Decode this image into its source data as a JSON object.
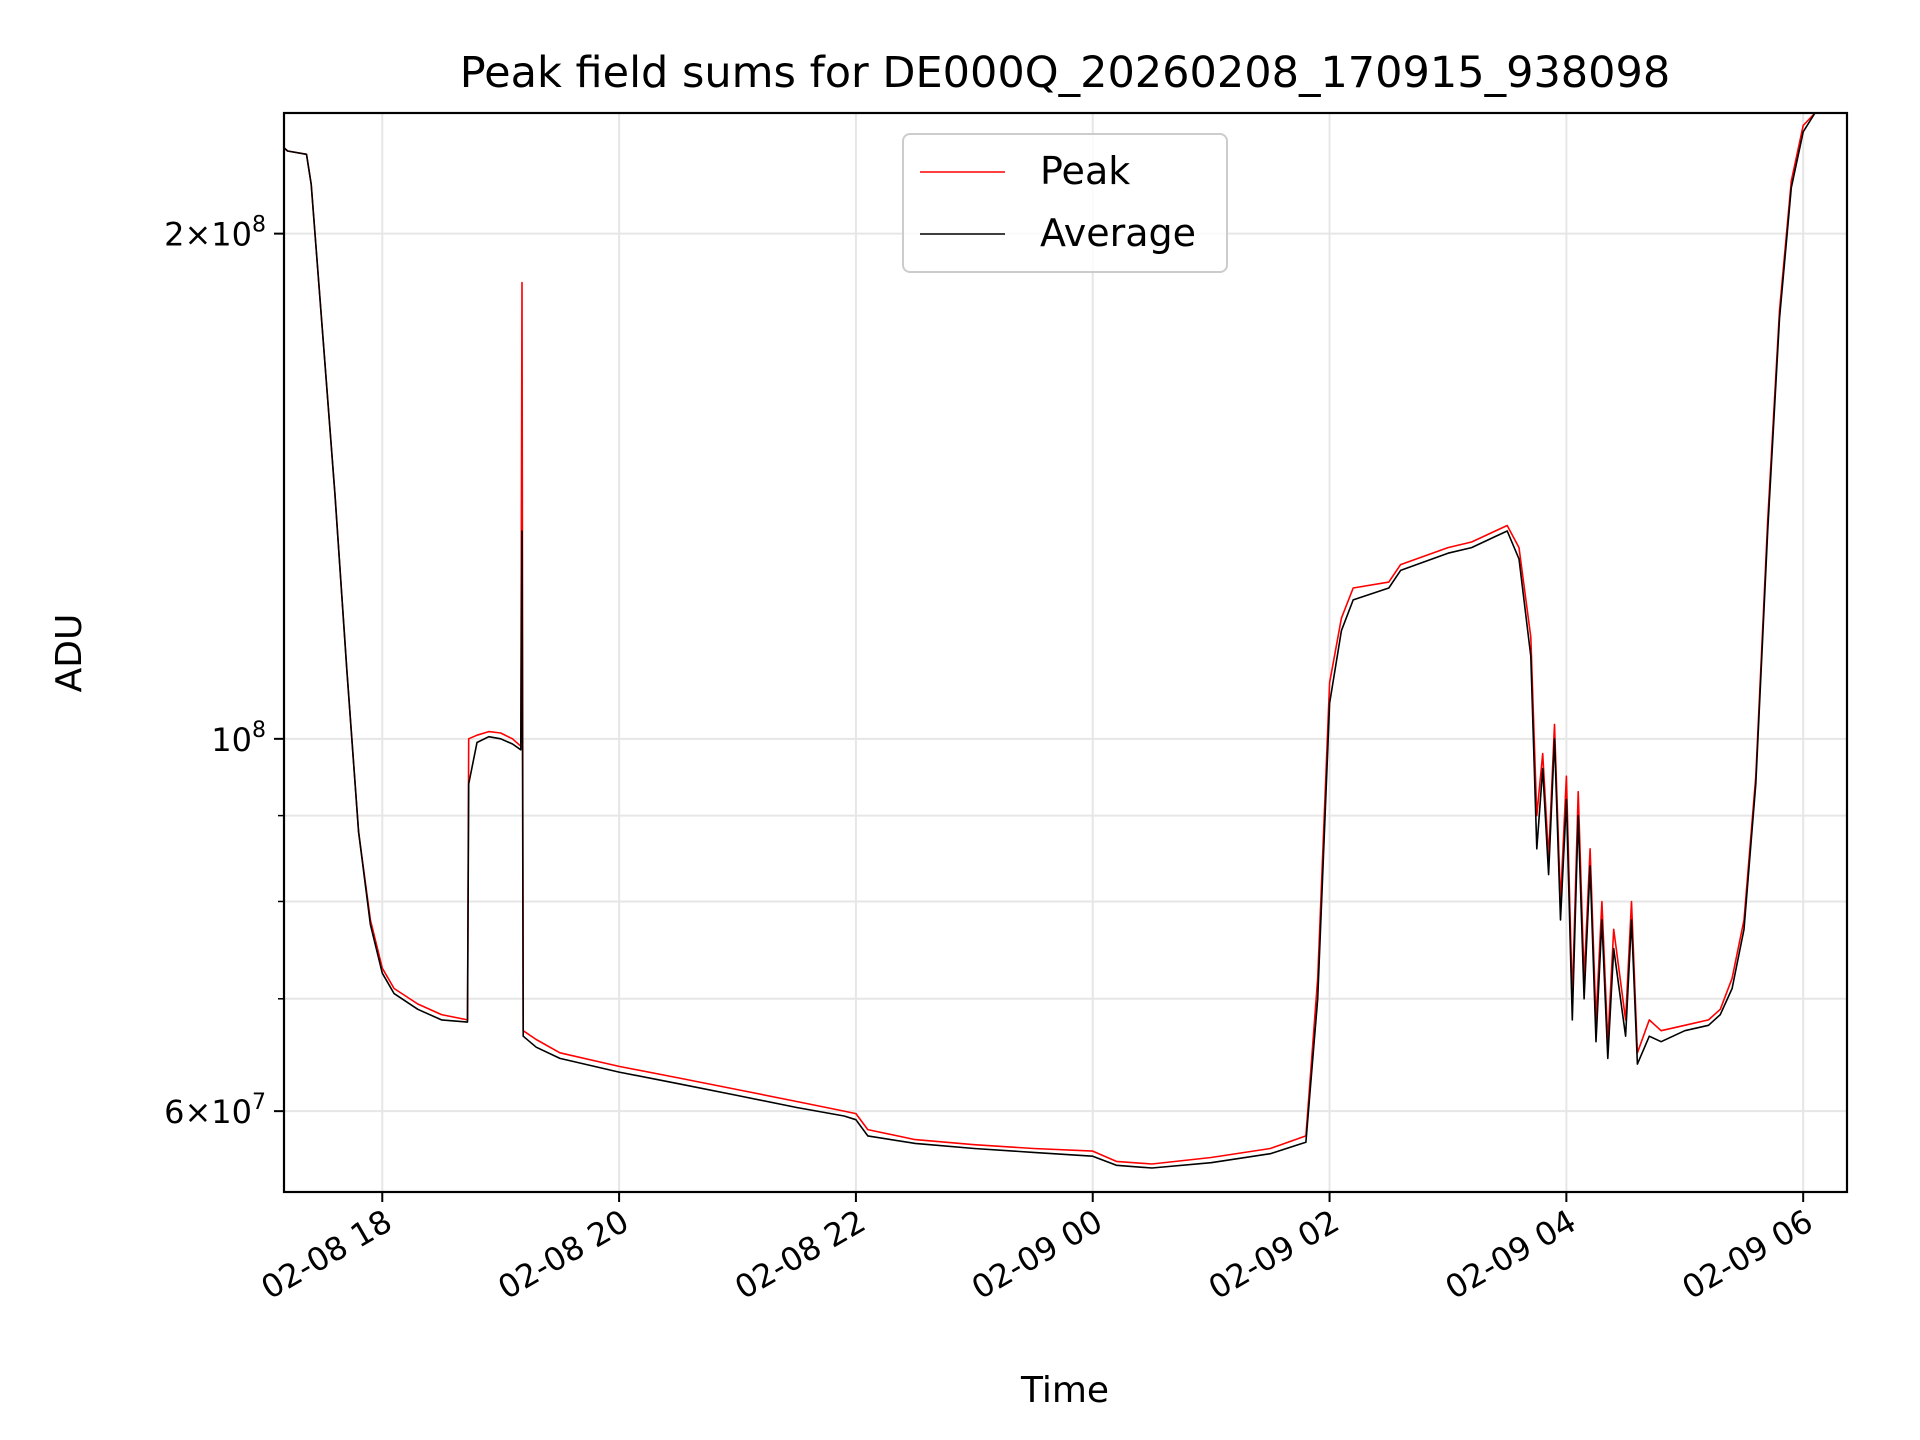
{
  "chart_data": {
    "type": "line",
    "title": "Peak field sums for DE000Q_20260208_170915_938098",
    "xlabel": "Time",
    "ylabel": "ADU",
    "yscale": "log",
    "xlim_hours": [
      -0.83,
      12.37
    ],
    "ylim": [
      53700000,
      236000000
    ],
    "grid": true,
    "legend_position": "top-center",
    "x_ticks": [
      {
        "hours": 0,
        "label": "02-08 18"
      },
      {
        "hours": 2,
        "label": "02-08 20"
      },
      {
        "hours": 4,
        "label": "02-08 22"
      },
      {
        "hours": 6,
        "label": "02-09 00"
      },
      {
        "hours": 8,
        "label": "02-09 02"
      },
      {
        "hours": 10,
        "label": "02-09 04"
      },
      {
        "hours": 12,
        "label": "02-09 06"
      }
    ],
    "x_reference": "hours since 02-08 18:00",
    "y_ticks": [
      {
        "value": 60000000,
        "mantissa": "6",
        "exponent": "7"
      },
      {
        "value": 100000000,
        "mantissa": "",
        "exponent": "8"
      },
      {
        "value": 200000000,
        "mantissa": "2",
        "exponent": "8"
      }
    ],
    "y_minor_ticks": [
      70000000,
      80000000,
      90000000
    ],
    "series": [
      {
        "name": "Peak",
        "color": "#ff0000",
        "points": [
          [
            -0.83,
            225000000
          ],
          [
            -0.8,
            224000000
          ],
          [
            -0.64,
            223000000
          ],
          [
            -0.6,
            214000000
          ],
          [
            -0.5,
            173000000
          ],
          [
            -0.4,
            140000000
          ],
          [
            -0.3,
            110000000
          ],
          [
            -0.2,
            88000000
          ],
          [
            -0.1,
            78000000
          ],
          [
            0,
            73000000
          ],
          [
            0.1,
            71000000
          ],
          [
            0.3,
            69500000
          ],
          [
            0.5,
            68500000
          ],
          [
            0.72,
            68000000
          ],
          [
            0.73,
            100000000
          ],
          [
            0.8,
            100500000
          ],
          [
            0.9,
            101000000
          ],
          [
            1.0,
            100800000
          ],
          [
            1.1,
            100000000
          ],
          [
            1.17,
            99000000
          ],
          [
            1.18,
            187000000
          ],
          [
            1.19,
            67000000
          ],
          [
            1.3,
            66200000
          ],
          [
            1.5,
            65000000
          ],
          [
            2.0,
            63800000
          ],
          [
            2.5,
            62800000
          ],
          [
            3.0,
            61800000
          ],
          [
            3.5,
            60800000
          ],
          [
            3.9,
            60000000
          ],
          [
            4.0,
            59800000
          ],
          [
            4.1,
            58500000
          ],
          [
            4.5,
            57700000
          ],
          [
            5.0,
            57300000
          ],
          [
            5.5,
            57000000
          ],
          [
            6.0,
            56800000
          ],
          [
            6.2,
            56000000
          ],
          [
            6.5,
            55800000
          ],
          [
            7.0,
            56300000
          ],
          [
            7.5,
            57000000
          ],
          [
            7.8,
            58000000
          ],
          [
            7.9,
            72000000
          ],
          [
            8.0,
            108000000
          ],
          [
            8.1,
            118000000
          ],
          [
            8.2,
            123000000
          ],
          [
            8.5,
            124000000
          ],
          [
            8.6,
            127000000
          ],
          [
            9.0,
            130000000
          ],
          [
            9.2,
            131000000
          ],
          [
            9.4,
            133000000
          ],
          [
            9.5,
            134000000
          ],
          [
            9.6,
            130000000
          ],
          [
            9.7,
            115000000
          ],
          [
            9.75,
            90000000
          ],
          [
            9.8,
            98000000
          ],
          [
            9.85,
            85000000
          ],
          [
            9.9,
            102000000
          ],
          [
            9.95,
            80000000
          ],
          [
            10.0,
            95000000
          ],
          [
            10.05,
            70000000
          ],
          [
            10.1,
            93000000
          ],
          [
            10.15,
            72000000
          ],
          [
            10.2,
            86000000
          ],
          [
            10.25,
            68000000
          ],
          [
            10.3,
            80000000
          ],
          [
            10.35,
            66000000
          ],
          [
            10.4,
            77000000
          ],
          [
            10.5,
            68000000
          ],
          [
            10.55,
            80000000
          ],
          [
            10.6,
            65000000
          ],
          [
            10.7,
            68000000
          ],
          [
            10.8,
            67000000
          ],
          [
            11.0,
            67500000
          ],
          [
            11.2,
            68000000
          ],
          [
            11.3,
            69000000
          ],
          [
            11.4,
            72000000
          ],
          [
            11.5,
            78000000
          ],
          [
            11.6,
            95000000
          ],
          [
            11.7,
            135000000
          ],
          [
            11.8,
            180000000
          ],
          [
            11.9,
            215000000
          ],
          [
            12.0,
            232000000
          ],
          [
            12.1,
            236000000
          ]
        ]
      },
      {
        "name": "Average",
        "color": "#000000",
        "points": [
          [
            -0.83,
            225000000
          ],
          [
            -0.8,
            224000000
          ],
          [
            -0.64,
            223000000
          ],
          [
            -0.6,
            214000000
          ],
          [
            -0.5,
            173000000
          ],
          [
            -0.4,
            140000000
          ],
          [
            -0.3,
            110000000
          ],
          [
            -0.2,
            88000000
          ],
          [
            -0.1,
            77500000
          ],
          [
            0,
            72500000
          ],
          [
            0.1,
            70500000
          ],
          [
            0.3,
            69000000
          ],
          [
            0.5,
            68000000
          ],
          [
            0.72,
            67800000
          ],
          [
            0.73,
            94000000
          ],
          [
            0.8,
            99500000
          ],
          [
            0.9,
            100300000
          ],
          [
            1.0,
            100000000
          ],
          [
            1.1,
            99300000
          ],
          [
            1.17,
            98500000
          ],
          [
            1.18,
            133000000
          ],
          [
            1.19,
            66500000
          ],
          [
            1.3,
            65500000
          ],
          [
            1.5,
            64500000
          ],
          [
            2.0,
            63300000
          ],
          [
            2.5,
            62300000
          ],
          [
            3.0,
            61300000
          ],
          [
            3.5,
            60300000
          ],
          [
            3.9,
            59600000
          ],
          [
            4.0,
            59300000
          ],
          [
            4.1,
            58000000
          ],
          [
            4.5,
            57400000
          ],
          [
            5.0,
            57000000
          ],
          [
            5.5,
            56700000
          ],
          [
            6.0,
            56400000
          ],
          [
            6.2,
            55700000
          ],
          [
            6.5,
            55500000
          ],
          [
            7.0,
            55900000
          ],
          [
            7.5,
            56600000
          ],
          [
            7.8,
            57500000
          ],
          [
            7.9,
            70000000
          ],
          [
            8.0,
            105000000
          ],
          [
            8.1,
            116000000
          ],
          [
            8.2,
            121000000
          ],
          [
            8.5,
            123000000
          ],
          [
            8.6,
            126000000
          ],
          [
            9.0,
            129000000
          ],
          [
            9.2,
            130000000
          ],
          [
            9.4,
            132000000
          ],
          [
            9.5,
            133000000
          ],
          [
            9.6,
            128000000
          ],
          [
            9.7,
            112000000
          ],
          [
            9.75,
            86000000
          ],
          [
            9.8,
            96000000
          ],
          [
            9.85,
            83000000
          ],
          [
            9.9,
            100000000
          ],
          [
            9.95,
            78000000
          ],
          [
            10.0,
            92000000
          ],
          [
            10.05,
            68000000
          ],
          [
            10.1,
            90000000
          ],
          [
            10.15,
            70000000
          ],
          [
            10.2,
            84000000
          ],
          [
            10.25,
            66000000
          ],
          [
            10.3,
            78000000
          ],
          [
            10.35,
            64500000
          ],
          [
            10.4,
            75000000
          ],
          [
            10.5,
            66500000
          ],
          [
            10.55,
            78000000
          ],
          [
            10.6,
            64000000
          ],
          [
            10.7,
            66500000
          ],
          [
            10.8,
            66000000
          ],
          [
            11.0,
            67000000
          ],
          [
            11.2,
            67500000
          ],
          [
            11.3,
            68500000
          ],
          [
            11.4,
            71000000
          ],
          [
            11.5,
            77000000
          ],
          [
            11.6,
            94000000
          ],
          [
            11.7,
            133000000
          ],
          [
            11.8,
            178000000
          ],
          [
            11.9,
            213000000
          ],
          [
            12.0,
            230000000
          ],
          [
            12.1,
            236000000
          ]
        ]
      }
    ]
  }
}
